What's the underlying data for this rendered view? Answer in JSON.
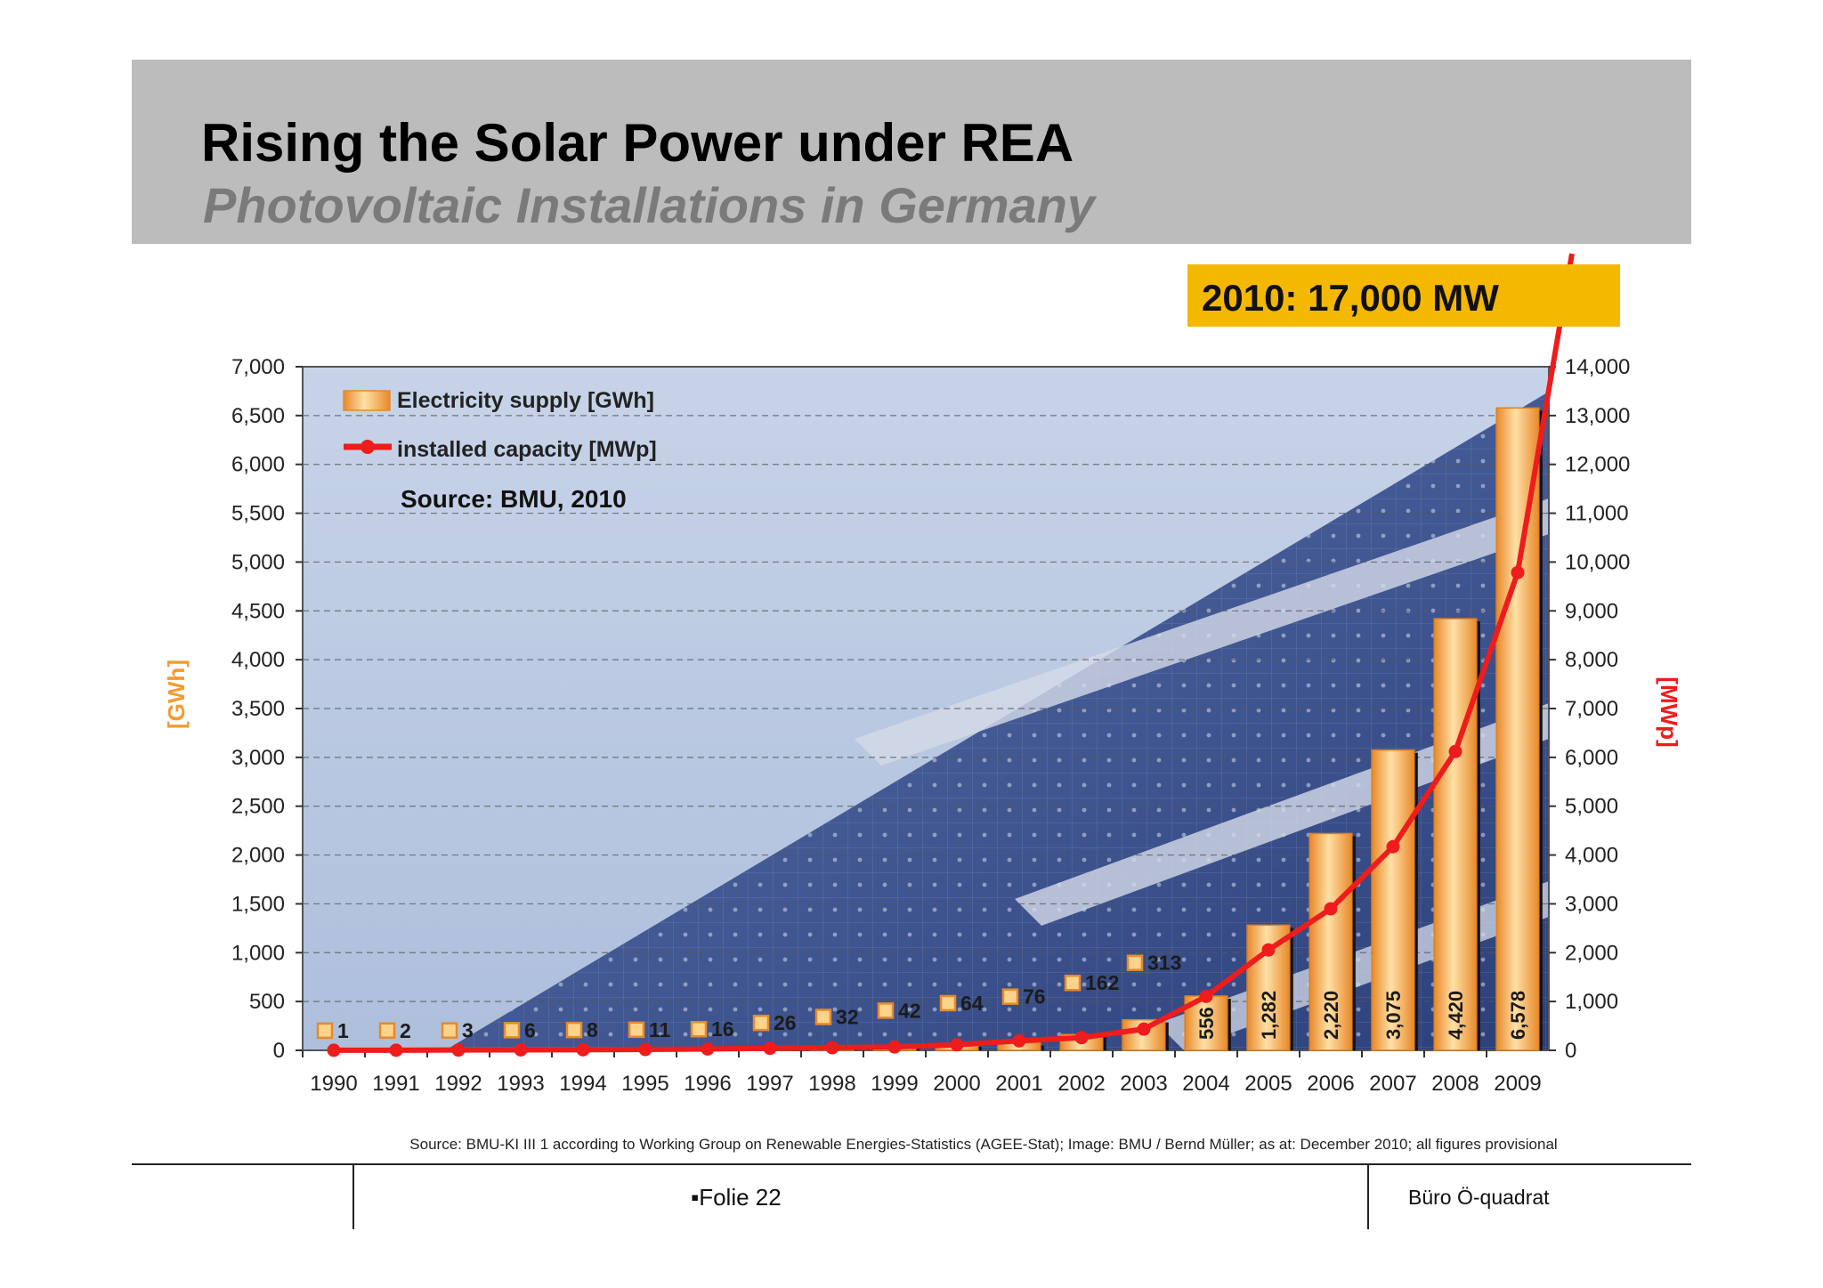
{
  "slide": {
    "title": "Rising the Solar Power under REA",
    "subtitle": "Photovoltaic Installations in Germany"
  },
  "callout": {
    "text": "2010: 17,000 MW",
    "color": "#f5b800"
  },
  "footer": {
    "center": "▪Folie 22",
    "right": "Büro Ö-quadrat"
  },
  "chart_data": {
    "type": "bar",
    "categories": [
      "1990",
      "1991",
      "1992",
      "1993",
      "1994",
      "1995",
      "1996",
      "1997",
      "1998",
      "1999",
      "2000",
      "2001",
      "2002",
      "2003",
      "2004",
      "2005",
      "2006",
      "2007",
      "2008",
      "2009"
    ],
    "series": [
      {
        "name": "Electricity supply [GWh]",
        "type": "bar",
        "axis": "left",
        "color": "#f5a640",
        "values": [
          1,
          2,
          3,
          6,
          8,
          11,
          16,
          26,
          32,
          42,
          64,
          76,
          162,
          313,
          556,
          1282,
          2220,
          3075,
          4420,
          6578
        ],
        "labels": [
          "1",
          "2",
          "3",
          "6",
          "8",
          "11",
          "16",
          "26",
          "32",
          "42",
          "64",
          "76",
          "162",
          "313",
          "556",
          "1,282",
          "2,220",
          "3,075",
          "4,420",
          "6,578"
        ]
      },
      {
        "name": "installed capacity [MWp]",
        "type": "line",
        "axis": "right",
        "color": "#ee1c1c",
        "values": [
          2,
          3,
          6,
          9,
          12,
          18,
          28,
          42,
          54,
          70,
          114,
          195,
          260,
          435,
          1105,
          2056,
          2899,
          4170,
          6120,
          9785
        ]
      }
    ],
    "y_left": {
      "label": "[GWh]",
      "range": [
        0,
        7000
      ],
      "ticks": [
        "0",
        "500",
        "1,000",
        "1,500",
        "2,000",
        "2,500",
        "3,000",
        "3,500",
        "4,000",
        "4,500",
        "5,000",
        "5,500",
        "6,000",
        "6,500",
        "7,000"
      ],
      "color": "#f59a30"
    },
    "y_right": {
      "label": "[MWp]",
      "range": [
        0,
        14000
      ],
      "ticks": [
        "0",
        "1,000",
        "2,000",
        "3,000",
        "4,000",
        "5,000",
        "6,000",
        "7,000",
        "8,000",
        "9,000",
        "10,000",
        "11,000",
        "12,000",
        "13,000",
        "14,000"
      ],
      "color": "#ee1c1c"
    },
    "annotation": "Source: BMU, 2010",
    "source_note": "Source: BMU-KI III 1 according to Working Group on Renewable Energies-Statistics (AGEE-Stat); Image: BMU / Bernd Müller; as at: December 2010; all figures provisional",
    "grid": true,
    "legend": "top-left"
  }
}
